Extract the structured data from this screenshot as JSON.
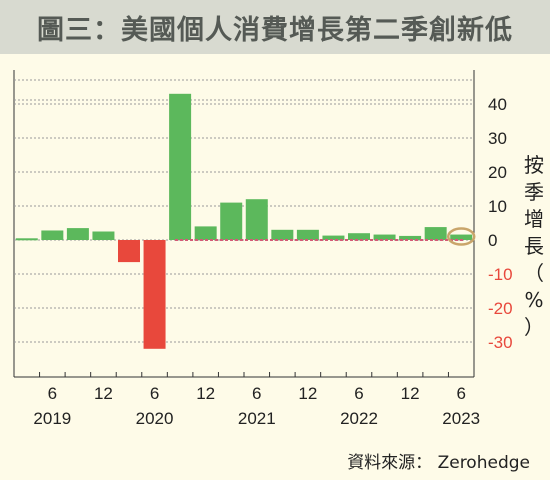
{
  "title": "圖三：美國個人消費增長第二季創新低",
  "source": "資料來源： Zerohedge",
  "colors": {
    "background": "#fefbe8",
    "title_bar": "#d8dad0",
    "positive": "#5cb85c",
    "negative": "#e8483c",
    "grid": "#9a9a9a",
    "negative_axis_text": "#e8483c",
    "highlight_ring": "#c9a56a",
    "reference_line": "#d45a76"
  },
  "chart_data": {
    "type": "bar",
    "categories": [
      "2019Q1",
      "2019Q2",
      "2019Q3",
      "2019Q4",
      "2020Q1",
      "2020Q2",
      "2020Q3",
      "2020Q4",
      "2021Q1",
      "2021Q2",
      "2021Q3",
      "2021Q4",
      "2022Q1",
      "2022Q2",
      "2022Q3",
      "2022Q4",
      "2023Q1",
      "2023Q2"
    ],
    "values": [
      0.5,
      2.8,
      3.5,
      2.5,
      -6.5,
      -32,
      43,
      4,
      11,
      12,
      3,
      3,
      1.3,
      2,
      1.6,
      1.2,
      3.8,
      1.6
    ],
    "ylim": [
      -40,
      45
    ],
    "yticks": [
      40,
      30,
      20,
      10,
      0,
      -10,
      -20,
      -30
    ],
    "ytick_labels": [
      "40",
      "30",
      "20",
      "10",
      "0",
      "-10",
      "-20",
      "-30"
    ],
    "ylabel": "按季增長（%）",
    "xtick_month_labels": [
      "6",
      "12",
      "6",
      "12",
      "6",
      "12",
      "6",
      "12",
      "6"
    ],
    "xtick_year_labels": [
      "2019",
      "2020",
      "2021",
      "2022",
      "2023"
    ],
    "grid": true
  }
}
